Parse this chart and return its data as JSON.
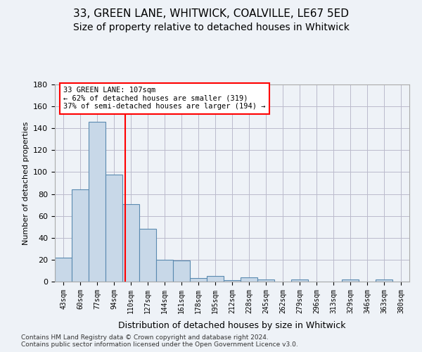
{
  "title1": "33, GREEN LANE, WHITWICK, COALVILLE, LE67 5ED",
  "title2": "Size of property relative to detached houses in Whitwick",
  "xlabel": "Distribution of detached houses by size in Whitwick",
  "ylabel": "Number of detached properties",
  "footnote": "Contains HM Land Registry data © Crown copyright and database right 2024.\nContains public sector information licensed under the Open Government Licence v3.0.",
  "bin_labels": [
    "43sqm",
    "60sqm",
    "77sqm",
    "94sqm",
    "110sqm",
    "127sqm",
    "144sqm",
    "161sqm",
    "178sqm",
    "195sqm",
    "212sqm",
    "228sqm",
    "245sqm",
    "262sqm",
    "279sqm",
    "296sqm",
    "313sqm",
    "329sqm",
    "346sqm",
    "363sqm",
    "380sqm"
  ],
  "bar_heights": [
    22,
    84,
    146,
    98,
    71,
    48,
    20,
    19,
    3,
    5,
    1,
    4,
    2,
    0,
    2,
    0,
    0,
    2,
    0,
    2,
    0
  ],
  "bar_color": "#c8d8e8",
  "bar_edge_color": "#5a8ab0",
  "bar_edge_width": 0.8,
  "ylim": [
    0,
    180
  ],
  "yticks": [
    0,
    20,
    40,
    60,
    80,
    100,
    120,
    140,
    160,
    180
  ],
  "red_line_x": 3.65,
  "annotation_line1": "33 GREEN LANE: 107sqm",
  "annotation_line2": "← 62% of detached houses are smaller (319)",
  "annotation_line3": "37% of semi-detached houses are larger (194) →",
  "background_color": "#eef2f7",
  "plot_bg_color": "#eef2f7",
  "title_fontsize": 11,
  "subtitle_fontsize": 10,
  "grid_color": "#bbbbcc"
}
